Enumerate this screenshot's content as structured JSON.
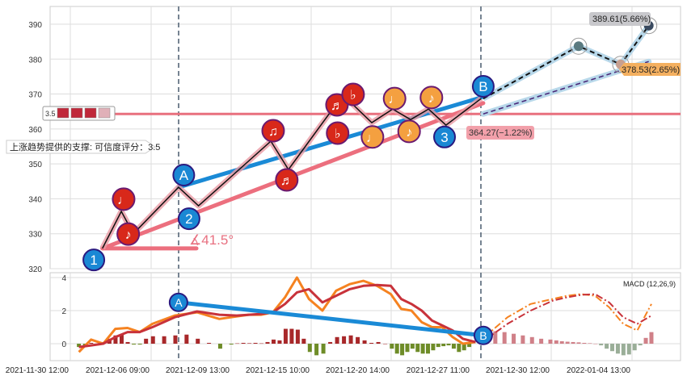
{
  "chart_data": [
    {
      "type": "candlestick-pattern",
      "y_ticks": [
        320,
        330,
        340,
        350,
        360,
        370,
        380,
        390
      ],
      "ylim": [
        320,
        390
      ],
      "grid": true,
      "x_ticks": [
        "2021-11-30 12:00",
        "2021-12-06 09:00",
        "2021-12-09 13:00",
        "2021-12-15 10:00",
        "2021-12-20 14:00",
        "2021-12-27 11:00",
        "2021-12-30 12:00",
        "2022-01-04 13:00"
      ],
      "price_path": [
        [
          "2021-12-02 20:00",
          325.8
        ],
        [
          "2021-12-04 05:00",
          336.4
        ],
        [
          "2021-12-05 02:00",
          330.0
        ],
        [
          "2021-12-07 11:00",
          343.3
        ],
        [
          "2021-12-08 06:00",
          338.0
        ],
        [
          "2021-12-12 11:00",
          356.5
        ],
        [
          "2021-12-13 18:00",
          348.4
        ],
        [
          "2021-12-17 00:00",
          366.9
        ],
        [
          "2021-12-17 21:00",
          368.0
        ],
        [
          "2021-12-19 08:00",
          361.8
        ],
        [
          "2021-12-20 17:00",
          365.7
        ],
        [
          "2021-12-22 06:00",
          362.7
        ],
        [
          "2021-12-23 19:00",
          365.7
        ],
        [
          "2021-12-25 07:00",
          361.1
        ],
        [
          "2021-12-27 20:00",
          368.7
        ]
      ],
      "forecast_path": [
        [
          "2021-12-27 22:00",
          368.7
        ],
        [
          "2022-01-01 05:00",
          383.7
        ],
        [
          "2022-01-03 20:00",
          378.5
        ],
        [
          "2022-01-05 14:00",
          389.6
        ]
      ],
      "forecast_trend": [
        [
          "2021-12-27 22:00",
          364.3
        ],
        [
          "2022-01-05 14:00",
          379.3
        ]
      ],
      "support_line": [
        [
          "2021-12-02 20:00",
          325.8
        ],
        [
          "2021-12-27 22:00",
          367.4
        ]
      ],
      "ab_line": [
        [
          "2021-12-07 11:00",
          343.3
        ],
        [
          "2021-12-27 22:00",
          369.2
        ]
      ],
      "resistance_level": 364.3,
      "angle_base": [
        [
          "2021-12-02 20:00",
          325.8
        ],
        [
          "2021-12-08 04:00",
          325.8
        ]
      ],
      "angle_label": "∡41.5°",
      "markers": [
        {
          "label": "1",
          "kind": "wave",
          "date": "2021-12-02 05:00",
          "price": 322.5
        },
        {
          "label": "♩",
          "kind": "red",
          "date": "2021-12-04 09:00",
          "price": 339.9
        },
        {
          "label": "♪",
          "kind": "red",
          "date": "2021-12-04 17:00",
          "price": 329.9
        },
        {
          "label": "A",
          "kind": "wave",
          "date": "2021-12-07 16:00",
          "price": 346.8
        },
        {
          "label": "2",
          "kind": "wave",
          "date": "2021-12-07 21:00",
          "price": 334.3
        },
        {
          "label": "♫",
          "kind": "red",
          "date": "2021-12-12 15:00",
          "price": 359.5
        },
        {
          "label": "♬",
          "kind": "red",
          "date": "2021-12-13 15:00",
          "price": 345.4
        },
        {
          "label": "♬",
          "kind": "red",
          "date": "2021-12-17 02:00",
          "price": 366.9
        },
        {
          "label": "♭",
          "kind": "red",
          "date": "2021-12-18 03:00",
          "price": 369.9
        },
        {
          "label": "♭",
          "kind": "red",
          "date": "2021-12-17 03:00",
          "price": 358.8
        },
        {
          "label": "♩",
          "kind": "orange",
          "date": "2021-12-19 09:00",
          "price": 357.7
        },
        {
          "label": "♩",
          "kind": "orange",
          "date": "2021-12-20 21:00",
          "price": 368.7
        },
        {
          "label": "♪",
          "kind": "orange",
          "date": "2021-12-22 03:00",
          "price": 359.3
        },
        {
          "label": "♪",
          "kind": "orange",
          "date": "2021-12-24 01:00",
          "price": 369.0
        },
        {
          "label": "3",
          "kind": "wave",
          "date": "2021-12-25 04:00",
          "price": 357.7
        },
        {
          "label": "B",
          "kind": "wave",
          "date": "2021-12-27 22:00",
          "price": 372.2
        }
      ],
      "annotations": {
        "high_target": "389.61(5.66%)",
        "mid_target": "378.53(2.65%)",
        "current": "364.27(−1.22%)",
        "support_note": "上涨趋势提供的支撑: 可信度评分：3.5",
        "rating_value": "3.5",
        "rating": 3.5
      },
      "colors": {
        "wave": "#1a88d4",
        "red": "#d8281a",
        "orange": "#f4a040",
        "support": "#ec6f7e",
        "ab": "#1a8ad6",
        "resistance": "#e8707e"
      }
    },
    {
      "type": "macd",
      "legend": "MACD (12,26,9)",
      "y_ticks": [
        0,
        2,
        4
      ],
      "ylim": [
        -1.0,
        4.3
      ],
      "range": [
        "2021-12-01 03:00",
        "2021-12-27 15:00"
      ],
      "dif": [
        -0.5,
        0.25,
        0.0,
        0.9,
        0.95,
        0.7,
        1.2,
        1.7,
        1.9,
        1.5,
        1.65,
        1.75,
        1.75,
        1.9,
        2.8,
        4.0,
        2.7,
        2.0,
        3.2,
        3.6,
        3.8,
        3.5,
        3.0,
        2.1,
        2.0,
        1.3,
        1.0,
        1.0,
        0.4,
        0.0,
        0.1
      ],
      "dea": [
        -0.2,
        -0.1,
        0.0,
        0.4,
        0.7,
        0.7,
        1.0,
        1.6,
        1.95,
        1.75,
        1.7,
        1.75,
        1.8,
        1.9,
        2.4,
        3.1,
        3.3,
        2.5,
        2.9,
        3.3,
        3.5,
        3.55,
        3.5,
        2.7,
        2.4,
        2.0,
        1.4,
        1.1,
        0.8,
        0.3,
        0.1
      ],
      "forecast_range": [
        "2021-12-27 23:00",
        "2022-01-05 18:00"
      ],
      "dif_forecast": [
        0.4,
        1.6,
        2.4,
        2.7,
        2.9,
        3.0,
        2.9,
        2.2,
        1.2,
        0.8,
        2.4
      ],
      "dea_forecast": [
        0.2,
        1.2,
        2.0,
        2.6,
        2.8,
        2.95,
        3.0,
        2.5,
        1.6,
        1.2,
        1.7
      ],
      "hist_range": [
        "2021-12-01 03:00",
        "2021-12-27 07:00"
      ],
      "hist": [
        -0.2,
        -0.1,
        0.05,
        0.0,
        0.1,
        0.3,
        0.5,
        0.55,
        0.1,
        -0.05,
        -0.05,
        0.3,
        0.45,
        0.45,
        0.5,
        0.55,
        0.3,
        0.05,
        -0.3,
        -0.05,
        0.02,
        0.05,
        0.03,
        0.05,
        0.02,
        0.1,
        0.25,
        0.2,
        0.9,
        0.9,
        0.85,
        0.3,
        -0.5,
        -0.7,
        -0.6,
        0.1,
        0.4,
        0.45,
        0.5,
        0.4,
        0.2,
        0.05,
        0.1,
        0.0,
        -0.3,
        -0.6,
        -0.7,
        -0.5,
        -0.3,
        -0.5,
        -0.6,
        -0.6,
        -0.4,
        -0.2,
        -0.15,
        -0.1,
        -0.3,
        -0.5,
        -0.4,
        -0.2
      ],
      "hist_forecast_range": [
        "2021-12-28 09:00",
        "2022-01-05 18:00"
      ],
      "hist_forecast": [
        0.75,
        0.7,
        0.6,
        0.5,
        0.4,
        0.3,
        0.25,
        0.2,
        0.15,
        0.12,
        0.1,
        0.08,
        0.05,
        0.03,
        0.0,
        -0.1,
        -0.3,
        -0.45,
        -0.6,
        -0.7,
        -0.65,
        -0.4,
        -0.1,
        0.35,
        0.7
      ],
      "divergence": [
        {
          "label": "A",
          "date": "2021-12-07 11:00",
          "value": 2.5
        },
        {
          "label": "B",
          "date": "2021-12-27 22:00",
          "value": 0.5
        }
      ],
      "colors": {
        "dif": "#f58220",
        "dea": "#c8323a",
        "hist_up": "#a8282a",
        "hist_down": "#6e8c28",
        "hist_up_forecast": "#d08088",
        "hist_down_forecast": "#9aae98"
      }
    }
  ]
}
